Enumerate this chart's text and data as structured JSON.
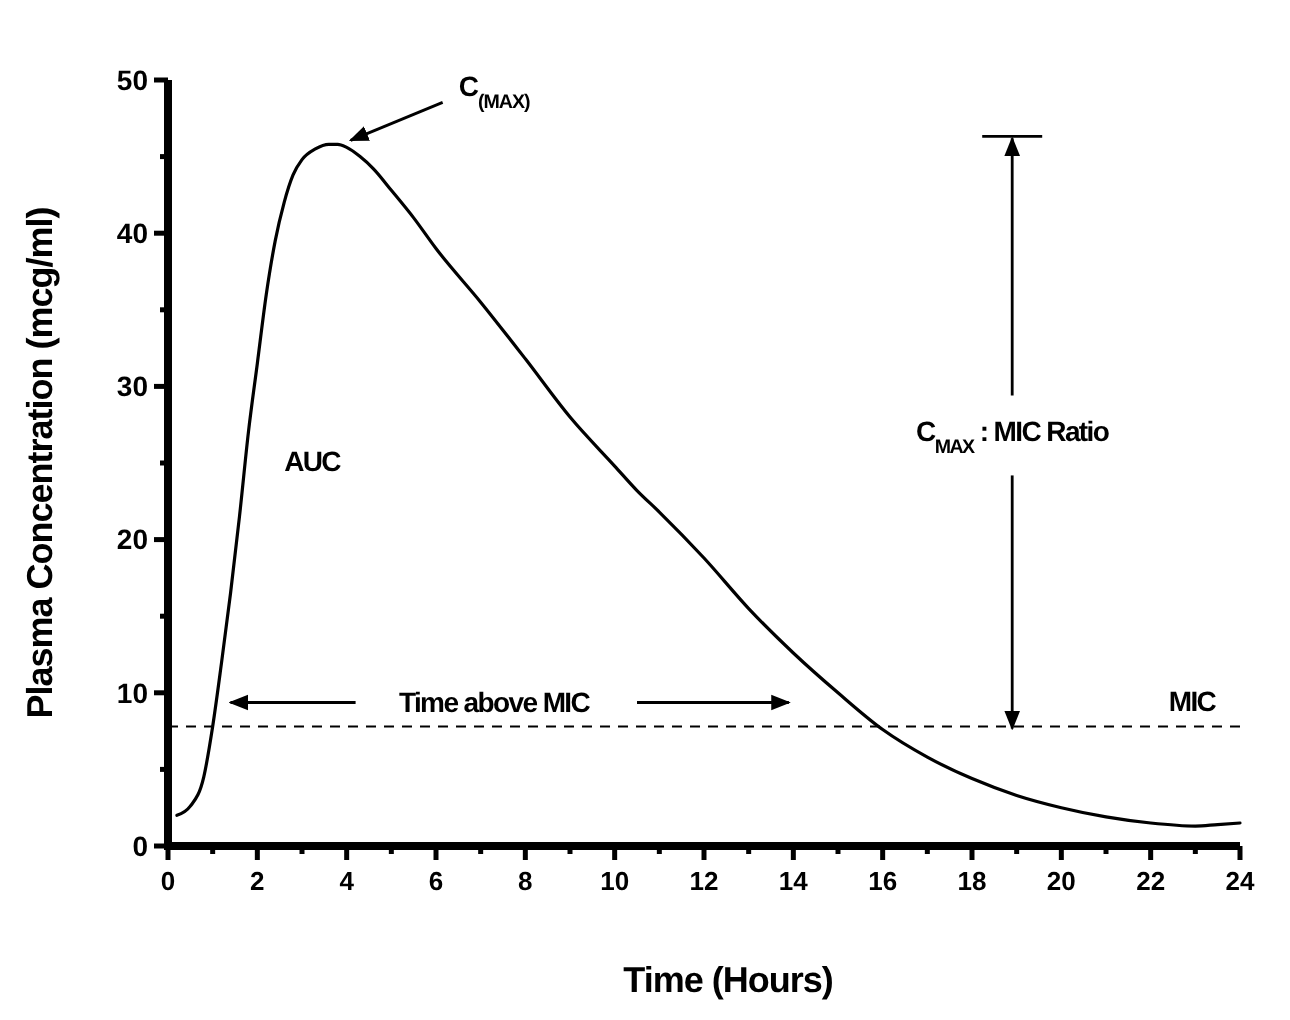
{
  "chart_data": {
    "type": "line",
    "xlabel": "Time (Hours)",
    "ylabel": "Plasma Concentration (mcg/ml)",
    "xlim": [
      0,
      24
    ],
    "ylim": [
      0,
      50
    ],
    "xticks": [
      0,
      {
        "value": 1,
        "label": null
      },
      2,
      {
        "value": 3,
        "label": null
      },
      4,
      {
        "value": 5,
        "label": null
      },
      6,
      {
        "value": 7,
        "label": null
      },
      8,
      {
        "value": 9,
        "label": null
      },
      10,
      {
        "value": 11,
        "label": null
      },
      12,
      {
        "value": 13,
        "label": null
      },
      14,
      {
        "value": 15,
        "label": null
      },
      16,
      {
        "value": 17,
        "label": null
      },
      18,
      {
        "value": 19,
        "label": null
      },
      20,
      {
        "value": 21,
        "label": null
      },
      22,
      {
        "value": 23,
        "label": null
      },
      24
    ],
    "yticks": [
      0,
      {
        "value": 5,
        "label": null
      },
      10,
      {
        "value": 15,
        "label": null
      },
      20,
      {
        "value": 25,
        "label": null
      },
      30,
      {
        "value": 35,
        "label": null
      },
      40,
      {
        "value": 45,
        "label": null
      },
      50
    ],
    "grid": false,
    "marker": "none",
    "line_style": "solid",
    "series": [
      {
        "color": "#000000",
        "x": [
          0.2,
          0.5,
          0.8,
          1.0,
          1.2,
          1.4,
          1.6,
          1.8,
          2.0,
          2.2,
          2.4,
          2.6,
          2.8,
          3.0,
          3.3,
          3.6,
          3.8,
          4.0,
          4.3,
          4.6,
          5.0,
          5.5,
          6.0,
          7.0,
          8.0,
          9.0,
          10.0,
          10.5,
          11.0,
          12.0,
          13.0,
          14.0,
          15.0,
          16.0,
          17.0,
          18.0,
          19.0,
          20.0,
          21.0,
          22.0,
          23.0,
          23.5,
          24.0
        ],
        "values": [
          2.0,
          2.6,
          4.5,
          7.8,
          12,
          16.5,
          21.5,
          27,
          31.5,
          36,
          39.5,
          42,
          43.8,
          44.8,
          45.5,
          45.8,
          45.8,
          45.6,
          45.0,
          44.2,
          42.8,
          41.0,
          39.0,
          35.5,
          31.8,
          28.0,
          24.8,
          23.2,
          21.8,
          18.8,
          15.5,
          12.6,
          10.0,
          7.6,
          5.8,
          4.4,
          3.3,
          2.5,
          1.9,
          1.5,
          1.3,
          1.4,
          1.5
        ]
      }
    ],
    "ref_lines": [
      {
        "axis": "y",
        "value": 7.8,
        "label": "MIC",
        "line_style": "dashed",
        "color": "#000000"
      }
    ],
    "annotations": [
      {
        "text": "C$_{(MAX)}$",
        "x": 4,
        "y": 45.8
      },
      "AUC",
      "Time above MIC",
      {
        "text": "C$_{MAX}$ : MIC Ratio",
        "x": 18.9,
        "y": 7.8
      }
    ]
  }
}
